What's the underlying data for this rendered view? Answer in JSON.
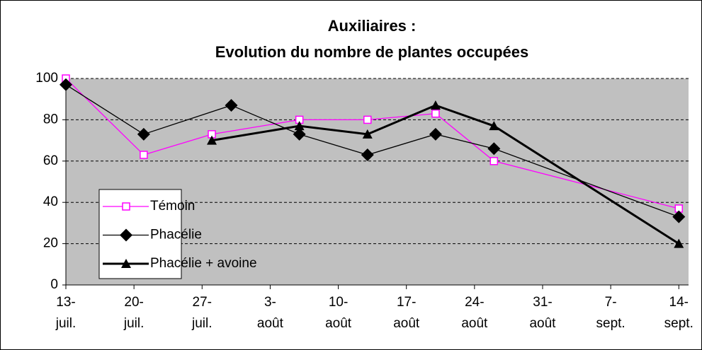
{
  "chart_data": {
    "type": "line",
    "title": "Auxiliaires :",
    "subtitle": "Evolution du nombre de plantes occupées",
    "ylim": [
      0,
      100
    ],
    "yticks": [
      0,
      20,
      40,
      60,
      80,
      100
    ],
    "grid": true,
    "legend": "bottom-left",
    "xlim": [
      "07-13",
      "09-15"
    ],
    "xticks": [
      {
        "value": "07-13",
        "label": "13-\njuil."
      },
      {
        "value": "07-20",
        "label": "20-\njuil."
      },
      {
        "value": "07-27",
        "label": "27-\njuil."
      },
      {
        "value": "08-03",
        "label": "3-\naoût"
      },
      {
        "value": "08-10",
        "label": "10-\naoût"
      },
      {
        "value": "08-17",
        "label": "17-\naoût"
      },
      {
        "value": "08-24",
        "label": "24-\naoût"
      },
      {
        "value": "08-31",
        "label": "31-\naoût"
      },
      {
        "value": "09-07",
        "label": "7-\nsept."
      },
      {
        "value": "09-14",
        "label": "14-\nsept."
      }
    ],
    "series": [
      {
        "name": "Témoin",
        "color": "#ff00ff",
        "marker": "square",
        "x": [
          "07-13",
          "07-21",
          "07-28",
          "08-06",
          "08-13",
          "08-20",
          "08-26",
          "09-14"
        ],
        "values": [
          100,
          63,
          73,
          80,
          80,
          83,
          60,
          37
        ]
      },
      {
        "name": "Phacélie",
        "color": "#000000",
        "marker": "diamond",
        "x": [
          "07-13",
          "07-21",
          "07-30",
          "08-06",
          "08-13",
          "08-20",
          "08-26",
          "09-14"
        ],
        "values": [
          97,
          73,
          87,
          73,
          63,
          73,
          66,
          33
        ]
      },
      {
        "name": "Phacélie + avoine",
        "color": "#000000",
        "marker": "triangle",
        "x": [
          "07-28",
          "08-06",
          "08-13",
          "08-20",
          "08-26",
          "09-14"
        ],
        "values": [
          70,
          77,
          73,
          87,
          77,
          20
        ]
      }
    ]
  }
}
